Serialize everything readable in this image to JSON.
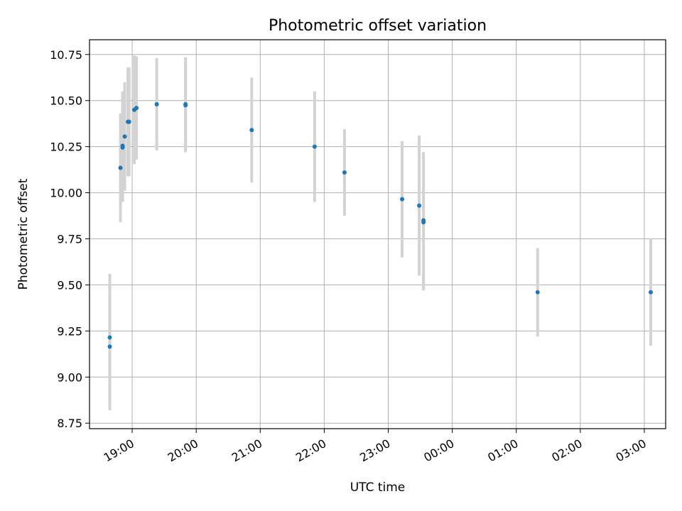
{
  "chart_data": {
    "type": "scatter",
    "title": "Photometric offset variation",
    "xlabel": "UTC time",
    "ylabel": "Photometric offset",
    "grid": true,
    "x_ticks": [
      "19:00",
      "20:00",
      "21:00",
      "22:00",
      "23:00",
      "00:00",
      "01:00",
      "02:00",
      "03:00"
    ],
    "y_ticks": [
      "8.75",
      "9.00",
      "9.25",
      "9.50",
      "9.75",
      "10.00",
      "10.25",
      "10.50",
      "10.75"
    ],
    "ylim": [
      8.72,
      10.83
    ],
    "xlim": [
      "18:20",
      "03:20"
    ],
    "colors": {
      "point": "#1f77b4",
      "errorbar": "#d3d3d3",
      "grid": "#b0b0b0"
    },
    "points": [
      {
        "x": "18:39",
        "y": 9.215,
        "err": 0.345
      },
      {
        "x": "18:39",
        "y": 9.165,
        "err": 0.345
      },
      {
        "x": "18:49",
        "y": 10.135,
        "err": 0.295
      },
      {
        "x": "18:51",
        "y": 10.255,
        "err": 0.295
      },
      {
        "x": "18:51",
        "y": 10.245,
        "err": 0.295
      },
      {
        "x": "18:53",
        "y": 10.305,
        "err": 0.295
      },
      {
        "x": "18:56",
        "y": 10.385,
        "err": 0.295
      },
      {
        "x": "18:57",
        "y": 10.385,
        "err": 0.295
      },
      {
        "x": "18:57",
        "y": 10.385,
        "err": 0.295
      },
      {
        "x": "18:57",
        "y": 10.385,
        "err": 0.295
      },
      {
        "x": "18:57",
        "y": 10.385,
        "err": 0.295
      },
      {
        "x": "19:02",
        "y": 10.45,
        "err": 0.295
      },
      {
        "x": "19:04",
        "y": 10.46,
        "err": 0.28
      },
      {
        "x": "19:23",
        "y": 10.48,
        "err": 0.25
      },
      {
        "x": "19:50",
        "y": 10.48,
        "err": 0.255
      },
      {
        "x": "19:50",
        "y": 10.475,
        "err": 0.255
      },
      {
        "x": "20:52",
        "y": 10.34,
        "err": 0.285
      },
      {
        "x": "21:51",
        "y": 10.25,
        "err": 0.3
      },
      {
        "x": "22:19",
        "y": 10.11,
        "err": 0.235
      },
      {
        "x": "23:13",
        "y": 9.965,
        "err": 0.315
      },
      {
        "x": "23:29",
        "y": 9.93,
        "err": 0.38
      },
      {
        "x": "23:33",
        "y": 9.85,
        "err": 0.37
      },
      {
        "x": "23:33",
        "y": 9.84,
        "err": 0.37
      },
      {
        "x": "01:20",
        "y": 9.46,
        "err": 0.24
      },
      {
        "x": "03:06",
        "y": 9.46,
        "err": 0.29
      }
    ]
  }
}
